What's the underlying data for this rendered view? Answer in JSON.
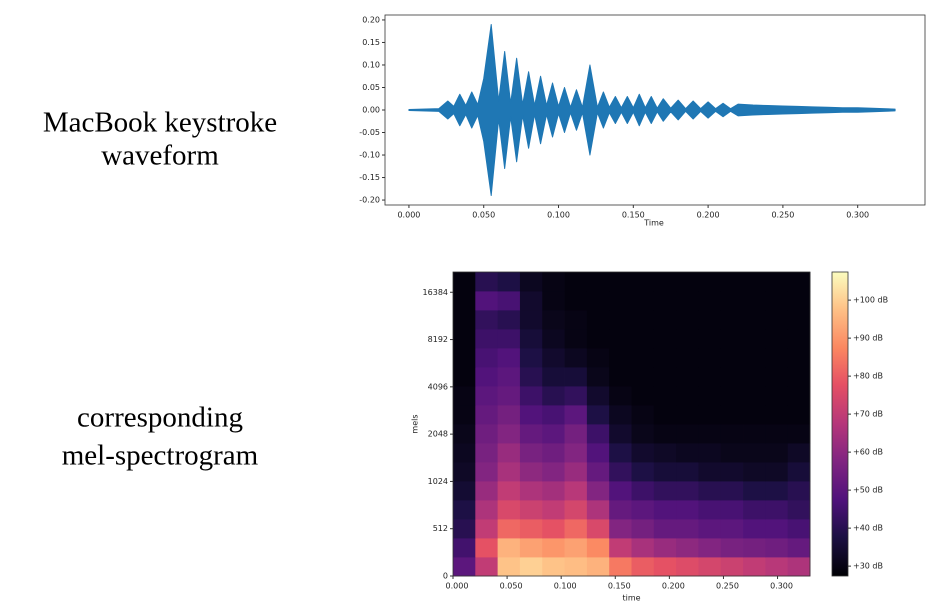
{
  "chart_data": [
    {
      "type": "waveform",
      "caption": [
        "MacBook keystroke",
        "waveform"
      ],
      "xlabel": "Time",
      "color": "#1f77b4",
      "xlim": [
        -0.016,
        0.345
      ],
      "ylim": [
        -0.211,
        0.211
      ],
      "xticks": [
        {
          "value": 0,
          "label": "0.000"
        },
        {
          "value": 0.05,
          "label": "0.050"
        },
        {
          "value": 0.1,
          "label": "0.100"
        },
        {
          "value": 0.15,
          "label": "0.150"
        },
        {
          "value": 0.2,
          "label": "0.200"
        },
        {
          "value": 0.25,
          "label": "0.250"
        },
        {
          "value": 0.3,
          "label": "0.300"
        }
      ],
      "yticks": [
        {
          "value": 0.2,
          "label": "0.20"
        },
        {
          "value": 0.15,
          "label": "0.15"
        },
        {
          "value": 0.1,
          "label": "0.10"
        },
        {
          "value": 0.05,
          "label": "0.05"
        },
        {
          "value": 0,
          "label": "0.00"
        },
        {
          "value": -0.05,
          "label": "-0.05"
        },
        {
          "value": -0.1,
          "label": "-0.10"
        },
        {
          "value": -0.15,
          "label": "-0.15"
        },
        {
          "value": -0.2,
          "label": "-0.20"
        }
      ],
      "x": [
        0,
        0.02,
        0.026,
        0.03,
        0.034,
        0.038,
        0.042,
        0.046,
        0.05,
        0.055,
        0.06,
        0.064,
        0.068,
        0.072,
        0.076,
        0.08,
        0.084,
        0.088,
        0.092,
        0.096,
        0.1,
        0.104,
        0.108,
        0.112,
        0.116,
        0.121,
        0.126,
        0.13,
        0.134,
        0.138,
        0.142,
        0.146,
        0.15,
        0.154,
        0.158,
        0.162,
        0.166,
        0.17,
        0.175,
        0.18,
        0.185,
        0.19,
        0.195,
        0.2,
        0.205,
        0.21,
        0.215,
        0.22,
        0.23,
        0.24,
        0.25,
        0.26,
        0.27,
        0.28,
        0.29,
        0.3,
        0.31,
        0.325
      ],
      "amplitude": [
        0.001,
        0.003,
        0.02,
        0.008,
        0.035,
        0.01,
        0.04,
        0.012,
        0.07,
        0.19,
        0.02,
        0.13,
        0.015,
        0.115,
        0.012,
        0.085,
        0.01,
        0.075,
        0.01,
        0.06,
        0.008,
        0.05,
        0.006,
        0.045,
        0.006,
        0.1,
        0.006,
        0.04,
        0.006,
        0.03,
        0.005,
        0.03,
        0.005,
        0.035,
        0.005,
        0.03,
        0.004,
        0.025,
        0.004,
        0.022,
        0.003,
        0.02,
        0.003,
        0.018,
        0.003,
        0.015,
        0.003,
        0.013,
        0.011,
        0.01,
        0.009,
        0.008,
        0.007,
        0.006,
        0.005,
        0.005,
        0.004,
        0.002
      ]
    },
    {
      "type": "heatmap",
      "caption": [
        "corresponding",
        "mel-spectrogram"
      ],
      "xlabel": "time",
      "ylabel": "mels",
      "yscale": "symlog",
      "linthresh": 512,
      "base": 2,
      "colormap": "magma",
      "xlim": [
        0,
        0.33
      ],
      "ylim": [
        0,
        22050
      ],
      "xticks": [
        {
          "value": 0,
          "label": "0.000"
        },
        {
          "value": 0.05,
          "label": "0.050"
        },
        {
          "value": 0.1,
          "label": "0.100"
        },
        {
          "value": 0.15,
          "label": "0.150"
        },
        {
          "value": 0.2,
          "label": "0.200"
        },
        {
          "value": 0.25,
          "label": "0.250"
        },
        {
          "value": 0.3,
          "label": "0.300"
        }
      ],
      "yticks": [
        0,
        512,
        1024,
        2048,
        4096,
        8192,
        16384
      ],
      "zlim": [
        27.4,
        107.4
      ],
      "zticks": [
        {
          "value": 30,
          "label": "+30 dB"
        },
        {
          "value": 40,
          "label": "+40 dB"
        },
        {
          "value": 50,
          "label": "+50 dB"
        },
        {
          "value": 60,
          "label": "+60 dB"
        },
        {
          "value": 70,
          "label": "+70 dB"
        },
        {
          "value": 80,
          "label": "+80 dB"
        },
        {
          "value": 90,
          "label": "+90 dB"
        },
        {
          "value": 100,
          "label": "+100 dB"
        }
      ],
      "z": [
        [
          50,
          70,
          98,
          100,
          98,
          97,
          95,
          85,
          80,
          78,
          76,
          74,
          72,
          70,
          68,
          66
        ],
        [
          45,
          78,
          95,
          92,
          90,
          92,
          88,
          70,
          65,
          62,
          60,
          58,
          56,
          55,
          54,
          52
        ],
        [
          40,
          70,
          82,
          80,
          78,
          82,
          75,
          58,
          55,
          52,
          52,
          50,
          50,
          48,
          48,
          46
        ],
        [
          38,
          66,
          75,
          72,
          70,
          74,
          66,
          52,
          50,
          48,
          48,
          46,
          46,
          44,
          44,
          42
        ],
        [
          35,
          62,
          70,
          66,
          64,
          68,
          58,
          48,
          44,
          42,
          42,
          40,
          40,
          38,
          38,
          40
        ],
        [
          33,
          58,
          65,
          60,
          58,
          62,
          52,
          42,
          38,
          36,
          36,
          34,
          34,
          33,
          33,
          36
        ],
        [
          32,
          56,
          62,
          56,
          54,
          58,
          48,
          38,
          34,
          33,
          32,
          32,
          31,
          31,
          31,
          33
        ],
        [
          31,
          54,
          58,
          52,
          50,
          55,
          44,
          34,
          31,
          30,
          30,
          30,
          30,
          30,
          30,
          30
        ],
        [
          30,
          52,
          55,
          48,
          46,
          50,
          38,
          32,
          30,
          29,
          29,
          29,
          29,
          29,
          29,
          29
        ],
        [
          30,
          50,
          52,
          44,
          40,
          42,
          34,
          30,
          29,
          29,
          29,
          29,
          29,
          29,
          29,
          29
        ],
        [
          29,
          48,
          50,
          40,
          36,
          36,
          31,
          29,
          29,
          29,
          29,
          29,
          29,
          29,
          29,
          29
        ],
        [
          29,
          46,
          48,
          38,
          34,
          32,
          30,
          29,
          29,
          29,
          29,
          29,
          29,
          29,
          29,
          29
        ],
        [
          29,
          44,
          44,
          36,
          32,
          30,
          29,
          29,
          29,
          29,
          29,
          29,
          29,
          29,
          29,
          29
        ],
        [
          29,
          42,
          40,
          34,
          31,
          30,
          29,
          29,
          29,
          29,
          29,
          29,
          29,
          29,
          29,
          29
        ],
        [
          29,
          48,
          46,
          34,
          30,
          29,
          29,
          29,
          29,
          29,
          29,
          29,
          29,
          29,
          29,
          29
        ],
        [
          29,
          40,
          38,
          32,
          30,
          29,
          29,
          29,
          29,
          29,
          29,
          29,
          29,
          29,
          29,
          29
        ]
      ]
    }
  ]
}
